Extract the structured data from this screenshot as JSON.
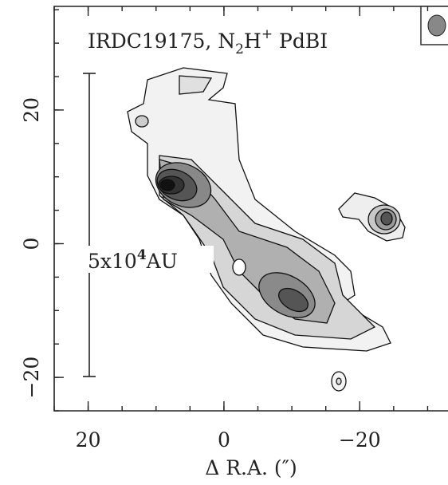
{
  "chart_data": {
    "type": "contour",
    "title_parts": [
      "IRDC19175, N",
      "2",
      "H",
      "+",
      " PdBI"
    ],
    "scale_label_parts": [
      "5x10",
      "4",
      "AU"
    ],
    "xlabel": "Δ R.A. (″)",
    "xlim": [
      25,
      -33
    ],
    "ylim": [
      -25,
      35.5
    ],
    "xticks": [
      20,
      0,
      {
        "value": -20,
        "label": "−20"
      }
    ],
    "yticks": [
      20,
      0,
      {
        "value": -20,
        "label": "−20"
      }
    ]
  }
}
